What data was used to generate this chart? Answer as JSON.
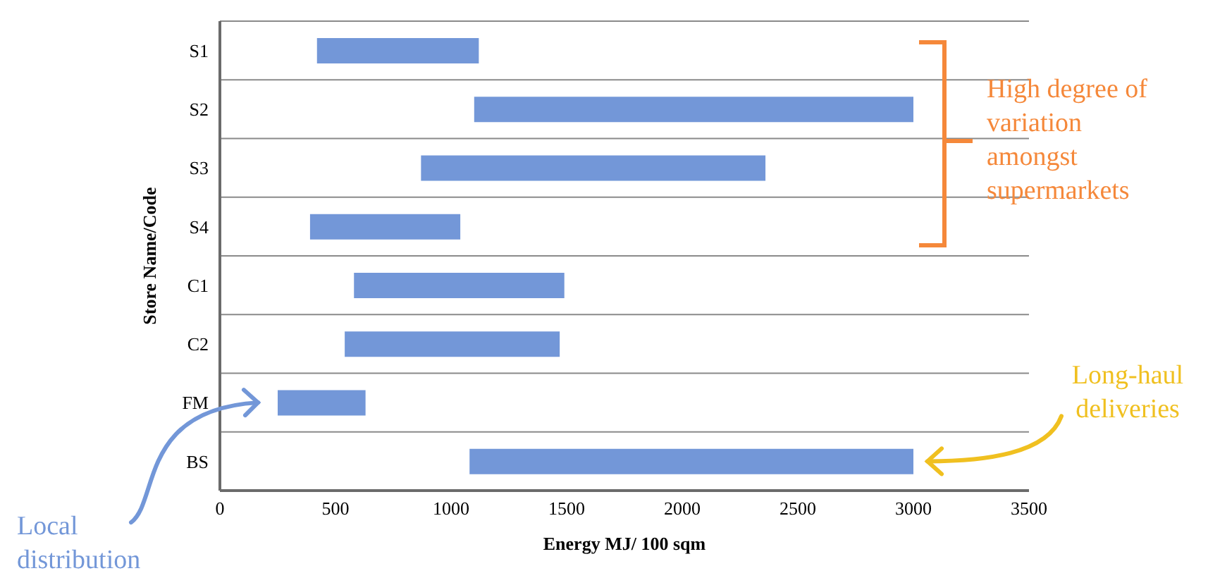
{
  "chart_data": {
    "type": "bar",
    "orientation": "horizontal",
    "xlabel": "Energy MJ/ 100 sqm",
    "ylabel": "Store Name/Code",
    "categories": [
      "S1",
      "S2",
      "S3",
      "S4",
      "C1",
      "C2",
      "FM",
      "BS"
    ],
    "base": [
      420,
      1100,
      870,
      390,
      580,
      540,
      250,
      1080
    ],
    "values": [
      700,
      1900,
      1490,
      650,
      910,
      930,
      380,
      1920
    ],
    "color": "#7397d8",
    "xlim": [
      0,
      3500
    ],
    "xticks": [
      0,
      500,
      1000,
      1500,
      2000,
      2500,
      3000,
      3500
    ],
    "grid": "y",
    "legend": false,
    "annotations": [
      "High degree of variation amongst supermarkets",
      "Long-haul deliveries",
      "Local distribution"
    ]
  }
}
